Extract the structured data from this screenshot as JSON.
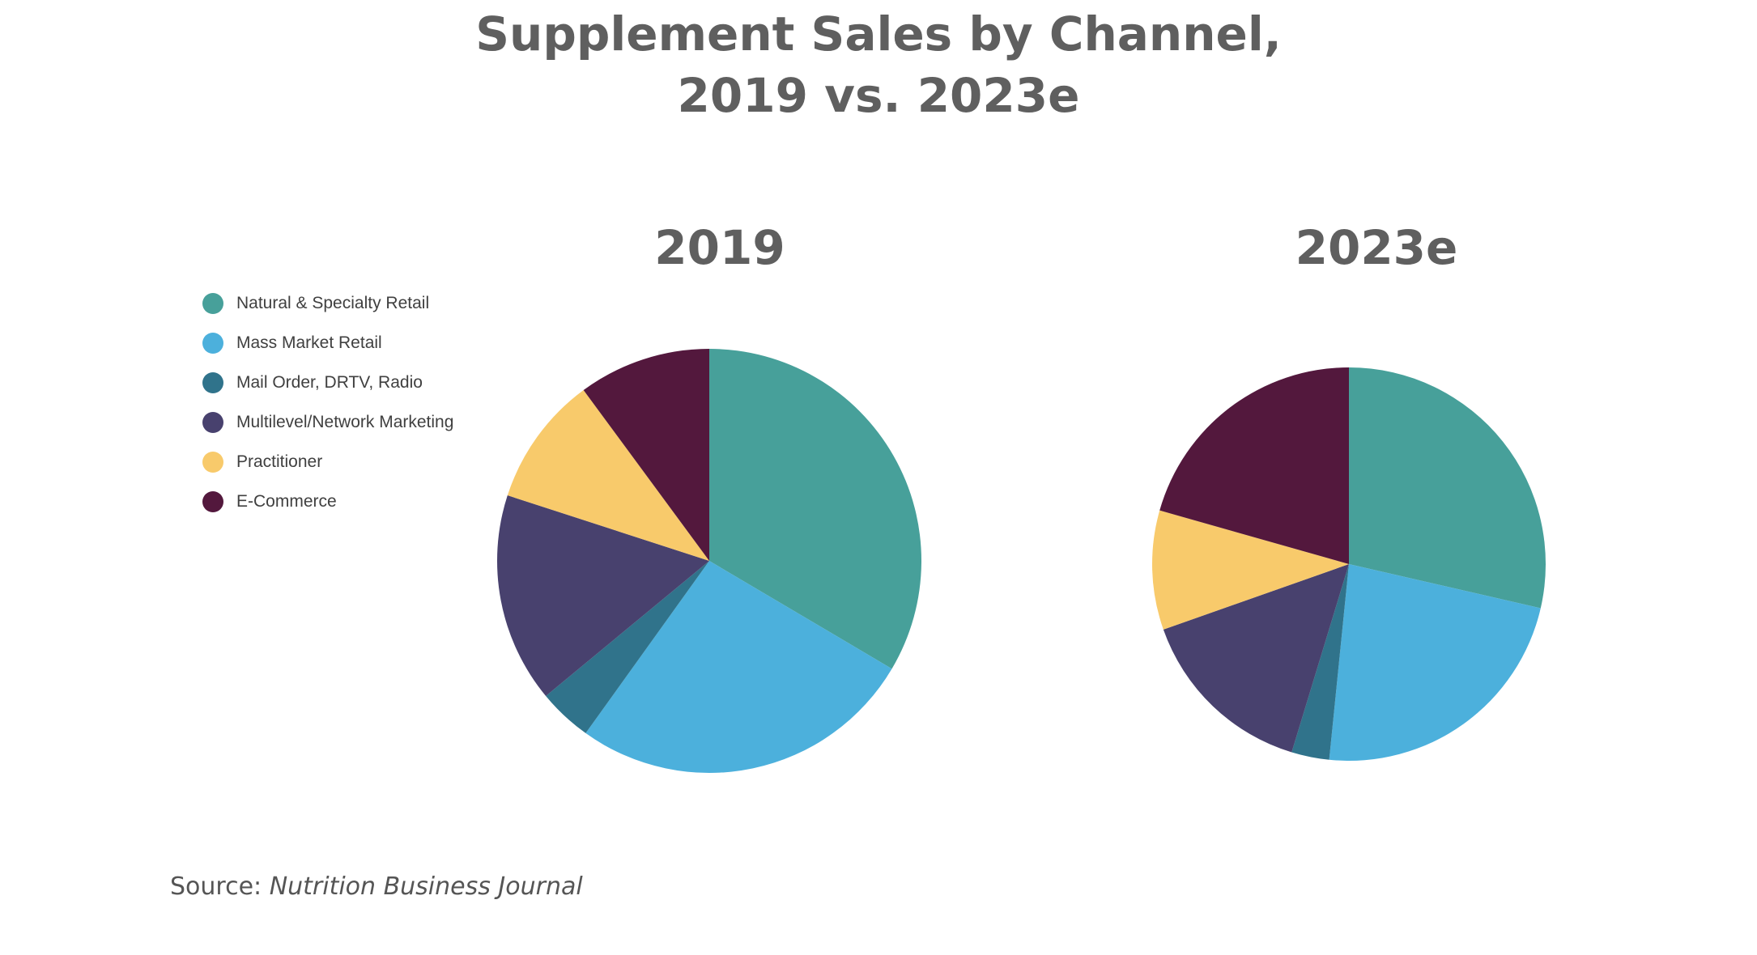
{
  "title_line1": "Supplement Sales by Channel,",
  "title_line2": "2019 vs. 2023e",
  "source_prefix": "Source: ",
  "source_name": "Nutrition Business Journal",
  "chart_data": [
    {
      "type": "pie",
      "title": "2019",
      "legend_position": "left",
      "categories": [
        "Natural & Specialty Retail",
        "Mass Market Retail",
        "Mail Order, DRTV, Radio",
        "Multilevel/Network Marketing",
        "Practitioner",
        "E-Commerce"
      ],
      "colors": [
        "#47a09a",
        "#4cb0dc",
        "#30738b",
        "#48416e",
        "#f8ca6b",
        "#53183d"
      ],
      "values": [
        33.5,
        26.4,
        4.1,
        16.0,
        9.9,
        10.1
      ]
    },
    {
      "type": "pie",
      "title": "2023e",
      "categories": [
        "Natural & Specialty Retail",
        "Mass Market Retail",
        "Mail Order, DRTV, Radio",
        "Multilevel/Network Marketing",
        "Practitioner",
        "E-Commerce"
      ],
      "colors": [
        "#47a09a",
        "#4cb0dc",
        "#30738b",
        "#48416e",
        "#f8ca6b",
        "#53183d"
      ],
      "values": [
        28.6,
        23.0,
        3.1,
        14.9,
        9.8,
        20.6
      ]
    }
  ]
}
